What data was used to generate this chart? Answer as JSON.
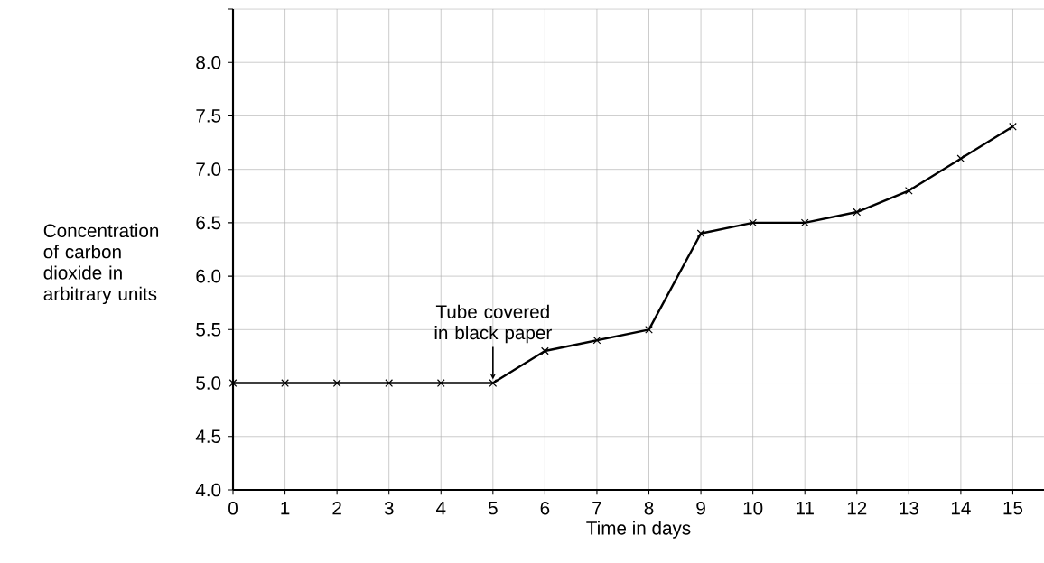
{
  "chart_data": {
    "type": "line",
    "xlabel": "Time in days",
    "ylabel": "Concentration of carbon dioxide in arbitrary units",
    "x": [
      0,
      1,
      2,
      3,
      4,
      5,
      6,
      7,
      8,
      9,
      10,
      11,
      12,
      13,
      14,
      15
    ],
    "values": [
      5.0,
      5.0,
      5.0,
      5.0,
      5.0,
      5.0,
      5.3,
      5.4,
      5.5,
      6.4,
      6.5,
      6.5,
      6.6,
      6.8,
      7.1,
      7.4
    ],
    "color": "#000000",
    "marker": "cross",
    "line_style": "solid",
    "grid": true,
    "xlim": [
      0,
      15.6
    ],
    "ylim": [
      4.0,
      8.5
    ],
    "xticks": [
      0,
      1,
      2,
      3,
      4,
      5,
      6,
      7,
      8,
      9,
      10,
      11,
      12,
      13,
      14,
      15
    ],
    "yticks": [
      {
        "value": 4.0,
        "label": "4.0"
      },
      {
        "value": 4.5,
        "label": "4.5"
      },
      {
        "value": 5.0,
        "label": "5.0"
      },
      {
        "value": 5.5,
        "label": "5.5"
      },
      {
        "value": 6.0,
        "label": "6.0"
      },
      {
        "value": 6.5,
        "label": "6.5"
      },
      {
        "value": 7.0,
        "label": "7.0"
      },
      {
        "value": 7.5,
        "label": "7.5"
      },
      {
        "value": 8.0,
        "label": "8.0"
      },
      {
        "value": 8.5,
        "label": null
      }
    ],
    "annotations": [
      {
        "text": "Tube covered in black paper",
        "x": 5,
        "y": 5.0
      }
    ]
  }
}
